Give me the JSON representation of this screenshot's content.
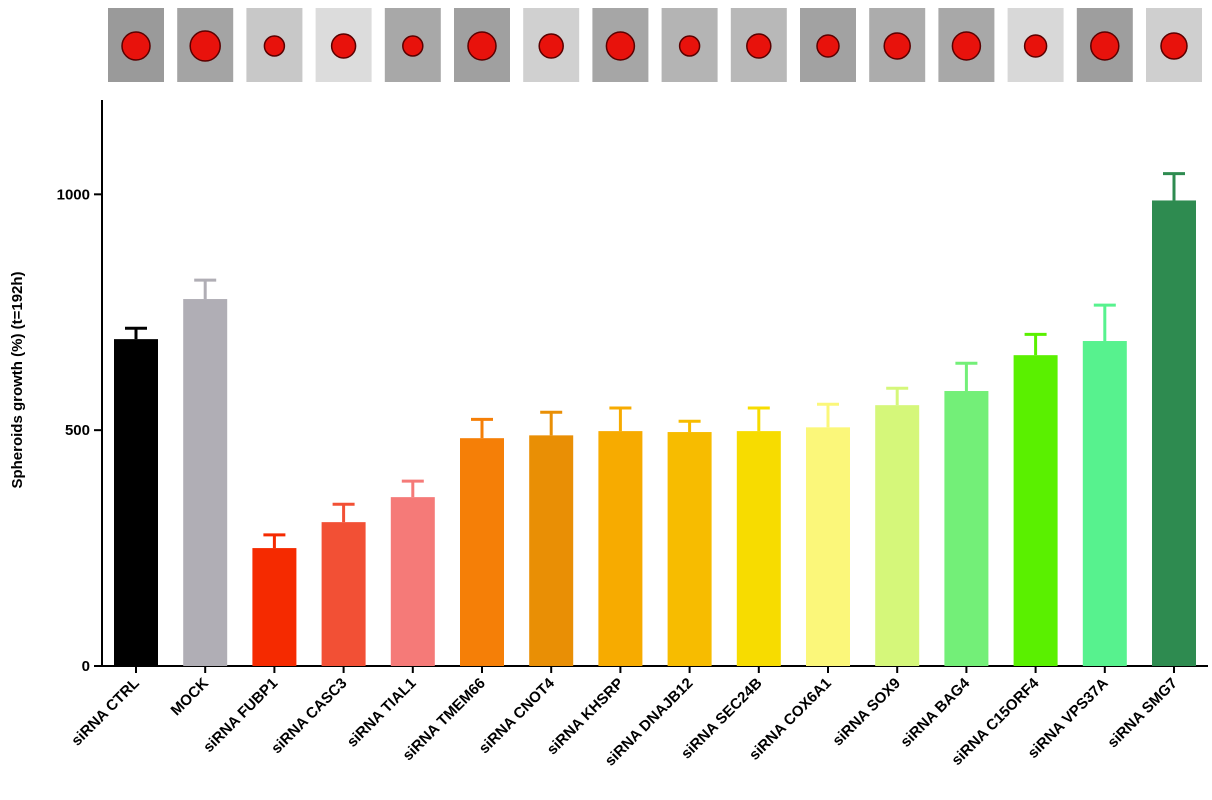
{
  "chart_data": {
    "type": "bar",
    "y_label": "Spheroids growth (%) (t=192h)",
    "categories": [
      "siRNA CTRL",
      "MOCK",
      "siRNA FUBP1",
      "siRNA CASC3",
      "siRNA TIAL1",
      "siRNA TMEM66",
      "siRNA CNOT4",
      "siRNA KHSRP",
      "siRNA DNAJB12",
      "siRNA SEC24B",
      "siRNA COX6A1",
      "siRNA SOX9",
      "siRNA BAG4",
      "siRNA C15ORF4",
      "siRNA VPS37A",
      "siRNA SMG7"
    ],
    "values": [
      693,
      778,
      250,
      305,
      358,
      483,
      489,
      498,
      496,
      498,
      506,
      553,
      583,
      659,
      689,
      987
    ],
    "errors": [
      23,
      40,
      28,
      38,
      34,
      40,
      49,
      49,
      23,
      49,
      49,
      36,
      59,
      44,
      76,
      57
    ],
    "colors": [
      "#000000",
      "#b0aeb5",
      "#f52a00",
      "#f25035",
      "#f57a78",
      "#f57f07",
      "#e98f05",
      "#f7ab00",
      "#f7bc00",
      "#f7dc00",
      "#fbf77a",
      "#d5f77a",
      "#73ef78",
      "#5af000",
      "#57f28e",
      "#2e8b50"
    ],
    "ylim": [
      0,
      1200
    ],
    "yticks": [
      0,
      500,
      1000
    ]
  }
}
